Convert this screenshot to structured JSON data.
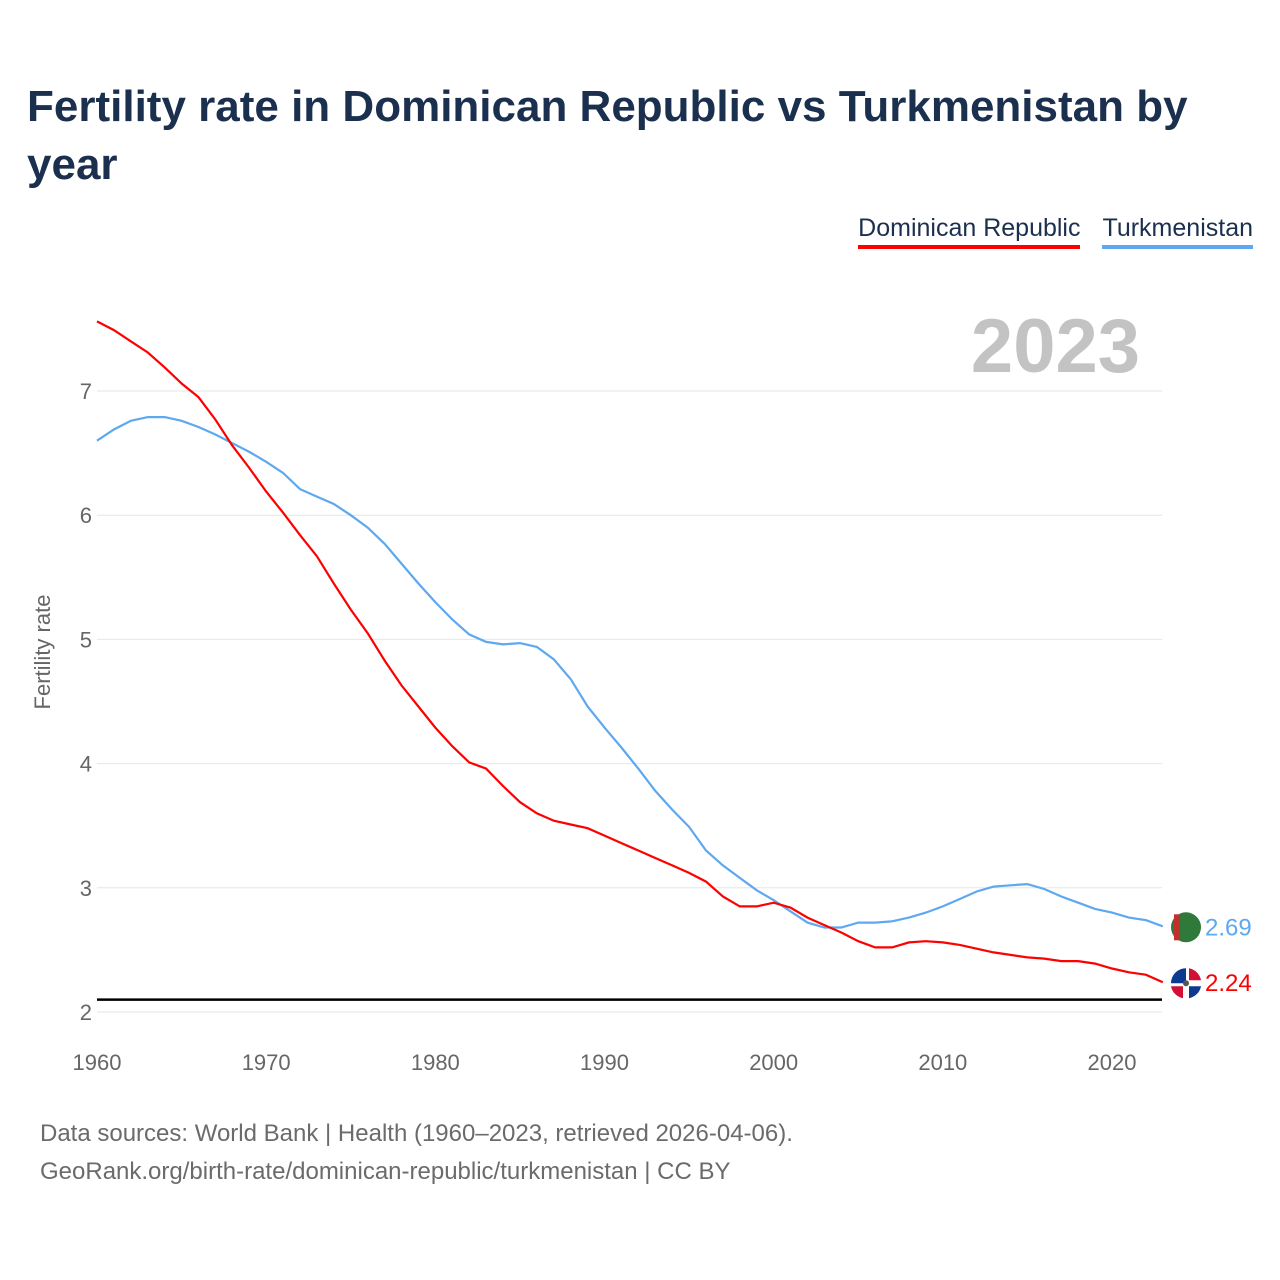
{
  "title": "Fertility rate in Dominican Republic vs Turkmenistan by year",
  "footer": {
    "line1": "Data sources: World Bank | Health (1960–2023, retrieved 2026-04-06).",
    "line2": "GeoRank.org/birth-rate/dominican-republic/turkmenistan | CC BY"
  },
  "chart_data": {
    "type": "line",
    "title": "Fertility rate in Dominican Republic vs Turkmenistan by year",
    "year_label": "2023",
    "xlabel": "",
    "ylabel": "Fertility rate",
    "xlim": [
      1960,
      2023
    ],
    "ylim": [
      2,
      7.6
    ],
    "x_ticks": [
      "1960",
      "1970",
      "1980",
      "1990",
      "2000",
      "2010",
      "2020"
    ],
    "y_ticks": [
      "2",
      "3",
      "4",
      "5",
      "6",
      "7"
    ],
    "grid": true,
    "legend_position": "top-right",
    "reference_line": 2.1,
    "x": [
      1960,
      1961,
      1962,
      1963,
      1964,
      1965,
      1966,
      1967,
      1968,
      1969,
      1970,
      1971,
      1972,
      1973,
      1974,
      1975,
      1976,
      1977,
      1978,
      1979,
      1980,
      1981,
      1982,
      1983,
      1984,
      1985,
      1986,
      1987,
      1988,
      1989,
      1990,
      1991,
      1992,
      1993,
      1994,
      1995,
      1996,
      1997,
      1998,
      1999,
      2000,
      2001,
      2002,
      2003,
      2004,
      2005,
      2006,
      2007,
      2008,
      2009,
      2010,
      2011,
      2012,
      2013,
      2014,
      2015,
      2016,
      2017,
      2018,
      2019,
      2020,
      2021,
      2022,
      2023
    ],
    "series": [
      {
        "name": "Dominican Republic",
        "color": "#ff0000",
        "end_label": "2.24",
        "flag": "dominican-republic-flag",
        "values": [
          7.56,
          7.49,
          7.4,
          7.31,
          7.19,
          7.06,
          6.95,
          6.77,
          6.56,
          6.38,
          6.19,
          6.02,
          5.84,
          5.67,
          5.45,
          5.24,
          5.05,
          4.83,
          4.63,
          4.46,
          4.29,
          4.14,
          4.01,
          3.96,
          3.82,
          3.69,
          3.6,
          3.54,
          3.51,
          3.48,
          3.42,
          3.36,
          3.3,
          3.24,
          3.18,
          3.12,
          3.05,
          2.93,
          2.85,
          2.85,
          2.88,
          2.84,
          2.76,
          2.7,
          2.64,
          2.57,
          2.52,
          2.52,
          2.56,
          2.57,
          2.56,
          2.54,
          2.51,
          2.48,
          2.46,
          2.44,
          2.43,
          2.41,
          2.41,
          2.39,
          2.35,
          2.32,
          2.3,
          2.24
        ]
      },
      {
        "name": "Turkmenistan",
        "color": "#5ea8f0",
        "end_label": "2.69",
        "flag": "turkmenistan-flag",
        "values": [
          6.6,
          6.69,
          6.76,
          6.79,
          6.79,
          6.76,
          6.71,
          6.65,
          6.58,
          6.51,
          6.43,
          6.34,
          6.21,
          6.15,
          6.09,
          6.0,
          5.9,
          5.77,
          5.61,
          5.45,
          5.3,
          5.16,
          5.04,
          4.98,
          4.96,
          4.97,
          4.94,
          4.84,
          4.68,
          4.46,
          4.29,
          4.13,
          3.96,
          3.78,
          3.63,
          3.49,
          3.3,
          3.18,
          3.08,
          2.98,
          2.9,
          2.81,
          2.72,
          2.68,
          2.68,
          2.72,
          2.72,
          2.73,
          2.76,
          2.8,
          2.85,
          2.91,
          2.97,
          3.01,
          3.02,
          3.03,
          2.99,
          2.93,
          2.88,
          2.83,
          2.8,
          2.76,
          2.74,
          2.69
        ]
      }
    ]
  }
}
